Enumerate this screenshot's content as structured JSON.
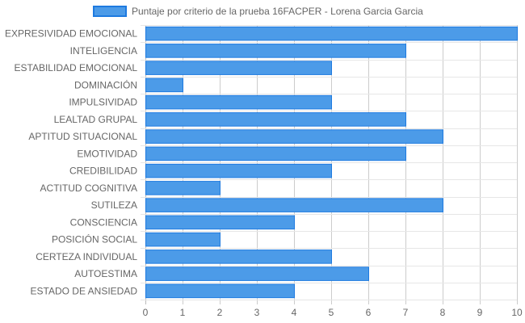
{
  "chart_data": {
    "type": "bar",
    "orientation": "horizontal",
    "categories": [
      "EXPRESIVIDAD EMOCIONAL",
      "INTELIGENCIA",
      "ESTABILIDAD EMOCIONAL",
      "DOMINACIÓN",
      "IMPULSIVIDAD",
      "LEALTAD GRUPAL",
      "APTITUD SITUACIONAL",
      "EMOTIVIDAD",
      "CREDIBILIDAD",
      "ACTITUD COGNITIVA",
      "SUTILEZA",
      "CONSCIENCIA",
      "POSICIÓN SOCIAL",
      "CERTEZA INDIVIDUAL",
      "AUTOESTIMA",
      "ESTADO DE ANSIEDAD"
    ],
    "series": [
      {
        "name": "Puntaje por criterio de la prueba 16FACPER - Lorena Garcia Garcia",
        "values": [
          10,
          7,
          5,
          1,
          5,
          7,
          8,
          7,
          5,
          2,
          8,
          4,
          2,
          5,
          6,
          4
        ],
        "color": "#4c9be8",
        "border_color": "#1e7ae0"
      }
    ],
    "xlim": [
      0,
      10
    ],
    "x_ticks": [
      "0",
      "1",
      "2",
      "3",
      "4",
      "5",
      "6",
      "7",
      "8",
      "9",
      "10"
    ],
    "grid": true,
    "legend": "top-center"
  }
}
